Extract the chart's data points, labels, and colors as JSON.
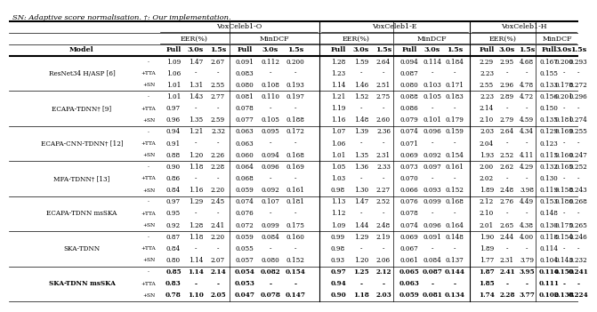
{
  "caption": "SN: Adaptive score normalisation. †: Our implementation.",
  "rows": [
    {
      "model": "ResNet34 H/ASP [6]",
      "bold": false,
      "sub": [
        "-",
        "+TTA",
        "+SN"
      ],
      "data": [
        [
          "1.09",
          "1.47",
          "2.67",
          "0.091",
          "0.112",
          "0.200",
          "1.28",
          "1.59",
          "2.64",
          "0.094",
          "0.114",
          "0.184",
          "2.29",
          "2.95",
          "4.68",
          "0.167",
          "0.200",
          "0.293"
        ],
        [
          "1.06",
          "-",
          "-",
          "0.083",
          "-",
          "-",
          "1.23",
          "-",
          "-",
          "0.087",
          "-",
          "-",
          "2.23",
          "-",
          "-",
          "0.155",
          "-",
          "-"
        ],
        [
          "1.01",
          "1.31",
          "2.55",
          "0.080",
          "0.108",
          "0.193",
          "1.14",
          "1.46",
          "2.51",
          "0.080",
          "0.103",
          "0.171",
          "2.55",
          "2.96",
          "4.78",
          "0.133",
          "0.178",
          "0.272"
        ]
      ]
    },
    {
      "model": "ECAPA-TDNN† [9]",
      "bold": false,
      "sub": [
        "-",
        "+TTA",
        "+SN"
      ],
      "data": [
        [
          "1.01",
          "1.43",
          "2.77",
          "0.081",
          "0.110",
          "0.197",
          "1.21",
          "1.52",
          "2.75",
          "0.088",
          "0.105",
          "0.183",
          "2.23",
          "2.89",
          "4.72",
          "0.156",
          "0.201",
          "0.296"
        ],
        [
          "0.97",
          "-",
          "-",
          "0.078",
          "-",
          "-",
          "1.19",
          "-",
          "-",
          "0.086",
          "-",
          "-",
          "2.14",
          "-",
          "-",
          "0.150",
          "-",
          "-"
        ],
        [
          "0.96",
          "1.35",
          "2.59",
          "0.077",
          "0.105",
          "0.188",
          "1.16",
          "1.48",
          "2.60",
          "0.079",
          "0.101",
          "0.179",
          "2.10",
          "2.79",
          "4.59",
          "0.135",
          "0.181",
          "0.274"
        ]
      ]
    },
    {
      "model": "ECAPA-CNN-TDNN† [12]",
      "bold": false,
      "sub": [
        "-",
        "+TTA",
        "+SN"
      ],
      "data": [
        [
          "0.94",
          "1.21",
          "2.32",
          "0.063",
          "0.095",
          "0.172",
          "1.07",
          "1.39",
          "2.36",
          "0.074",
          "0.096",
          "0.159",
          "2.03",
          "2.64",
          "4.34",
          "0.129",
          "0.169",
          "0.255"
        ],
        [
          "0.91",
          "-",
          "-",
          "0.063",
          "-",
          "-",
          "1.06",
          "-",
          "-",
          "0.071",
          "-",
          "-",
          "2.04",
          "-",
          "-",
          "0.123",
          "-",
          "-"
        ],
        [
          "0.88",
          "1.20",
          "2.26",
          "0.060",
          "0.094",
          "0.168",
          "1.01",
          "1.35",
          "2.31",
          "0.069",
          "0.092",
          "0.154",
          "1.93",
          "2.52",
          "4.11",
          "0.115",
          "0.160",
          "0.247"
        ]
      ]
    },
    {
      "model": "MFA-TDNN† [13]",
      "bold": false,
      "sub": [
        "-",
        "+TTA",
        "+SN"
      ],
      "data": [
        [
          "0.90",
          "1.18",
          "2.28",
          "0.064",
          "0.096",
          "0.169",
          "1.05",
          "1.36",
          "2.33",
          "0.073",
          "0.097",
          "0.161",
          "2.00",
          "2.62",
          "4.29",
          "0.132",
          "0.165",
          "0.252"
        ],
        [
          "0.86",
          "-",
          "-",
          "0.068",
          "-",
          "-",
          "1.03",
          "-",
          "-",
          "0.070",
          "-",
          "-",
          "2.02",
          "-",
          "-",
          "0.130",
          "-",
          "-"
        ],
        [
          "0.84",
          "1.16",
          "2.20",
          "0.059",
          "0.092",
          "0.161",
          "0.98",
          "1.30",
          "2.27",
          "0.066",
          "0.093",
          "0.152",
          "1.89",
          "2.48",
          "3.98",
          "0.119",
          "0.158",
          "0.243"
        ]
      ]
    },
    {
      "model": "ECAPA-TDNN msSKA",
      "bold": false,
      "sub": [
        "-",
        "+TTA",
        "+SN"
      ],
      "data": [
        [
          "0.97",
          "1.29",
          "2.45",
          "0.074",
          "0.107",
          "0.181",
          "1.13",
          "1.47",
          "2.52",
          "0.076",
          "0.099",
          "0.168",
          "2.12",
          "2.76",
          "4.49",
          "0.153",
          "0.186",
          "0.268"
        ],
        [
          "0.95",
          "-",
          "-",
          "0.076",
          "-",
          "-",
          "1.12",
          "-",
          "-",
          "0.078",
          "-",
          "-",
          "2.10",
          "-",
          "-",
          "0.148",
          "-",
          "-"
        ],
        [
          "0.92",
          "1.28",
          "2.41",
          "0.072",
          "0.099",
          "0.175",
          "1.09",
          "1.44",
          "2.48",
          "0.074",
          "0.096",
          "0.164",
          "2.01",
          "2.65",
          "4.38",
          "0.130",
          "0.175",
          "0.265"
        ]
      ]
    },
    {
      "model": "SKA-TDNN",
      "bold": false,
      "sub": [
        "-",
        "+TTA",
        "+SN"
      ],
      "data": [
        [
          "0.87",
          "1.18",
          "2.20",
          "0.059",
          "0.084",
          "0.160",
          "0.99",
          "1.29",
          "2.19",
          "0.069",
          "0.091",
          "0.148",
          "1.90",
          "2.44",
          "4.00",
          "0.118",
          "0.154",
          "0.246"
        ],
        [
          "0.84",
          "-",
          "-",
          "0.055",
          "-",
          "-",
          "0.98",
          "-",
          "-",
          "0.067",
          "-",
          "-",
          "1.89",
          "-",
          "-",
          "0.114",
          "-",
          "-"
        ],
        [
          "0.80",
          "1.14",
          "2.07",
          "0.057",
          "0.080",
          "0.152",
          "0.93",
          "1.20",
          "2.06",
          "0.061",
          "0.084",
          "0.137",
          "1.77",
          "2.31",
          "3.79",
          "0.104",
          "0.143",
          "0.232"
        ]
      ]
    },
    {
      "model": "SKA-TDNN msSKA",
      "bold": true,
      "sub": [
        "-",
        "+TTA",
        "+SN"
      ],
      "data": [
        [
          "0.85",
          "1.14",
          "2.14",
          "0.054",
          "0.082",
          "0.154",
          "0.97",
          "1.25",
          "2.12",
          "0.065",
          "0.087",
          "0.144",
          "1.87",
          "2.41",
          "3.95",
          "0.114",
          "0.150",
          "0.241"
        ],
        [
          "0.83",
          "-",
          "-",
          "0.053",
          "-",
          "-",
          "0.94",
          "-",
          "-",
          "0.063",
          "-",
          "-",
          "1.85",
          "-",
          "-",
          "0.111",
          "-",
          "-"
        ],
        [
          "0.78",
          "1.10",
          "2.05",
          "0.047",
          "0.078",
          "0.147",
          "0.90",
          "1.18",
          "2.03",
          "0.059",
          "0.081",
          "0.134",
          "1.74",
          "2.28",
          "3.77",
          "0.102",
          "0.138",
          "0.224"
        ]
      ]
    }
  ]
}
